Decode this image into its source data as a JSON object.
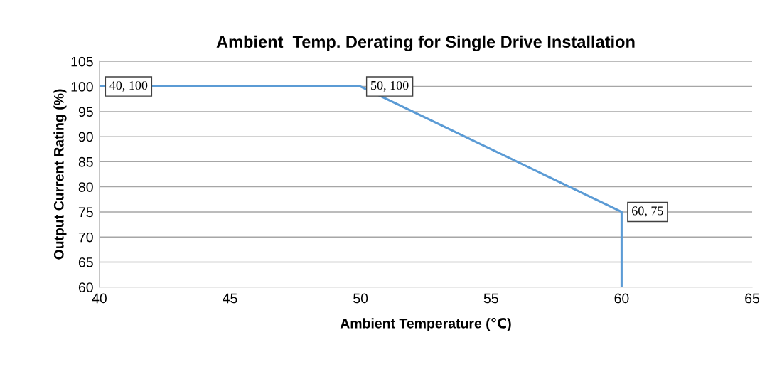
{
  "chart_data": {
    "type": "line",
    "title": "Ambient  Temp. Derating for Single Drive Installation",
    "xlabel": "Ambient Temperature (℃)",
    "ylabel": "Output Current Rating (%)",
    "x": [
      40,
      50,
      60,
      60
    ],
    "series": [
      {
        "color": "#5b9bd5",
        "values": [
          100,
          100,
          75,
          60
        ],
        "value_labels": [
          "40, 100",
          "50, 100",
          "60, 75",
          null
        ]
      }
    ],
    "xlim": [
      40,
      65
    ],
    "xticks": [
      40,
      45,
      50,
      55,
      60,
      65
    ],
    "ylim": [
      60,
      105
    ],
    "yticks": [
      60,
      65,
      70,
      75,
      80,
      85,
      90,
      95,
      100,
      105
    ],
    "grid": "y",
    "legend": false,
    "marker": "none",
    "line_style": "solid"
  }
}
